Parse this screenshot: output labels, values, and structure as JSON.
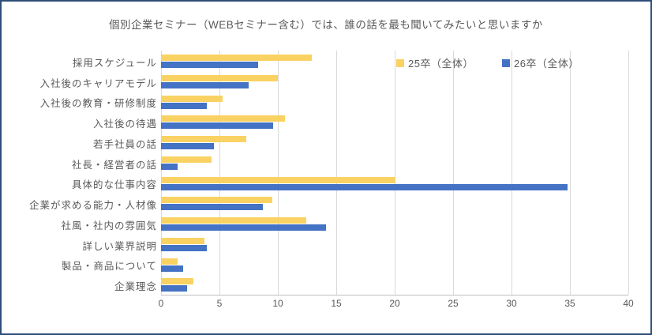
{
  "chart_data": {
    "type": "bar",
    "orientation": "horizontal",
    "title": "個別企業セミナー（WEBセミナー含む）では、誰の話を最も聞いてみたいと思いますか",
    "categories": [
      "採用スケジュール",
      "入社後のキャリアモデル",
      "入社後の教育・研修制度",
      "入社後の待遇",
      "若手社員の話",
      "社長・経営者の話",
      "具体的な仕事内容",
      "企業が求める能力・人材像",
      "社風・社内の雰囲気",
      "詳しい業界説明",
      "製品・商品について",
      "企業理念"
    ],
    "series": [
      {
        "name": "25卒（全体）",
        "color": "#FAD263",
        "values": [
          12.9,
          10.0,
          5.3,
          10.6,
          7.3,
          4.3,
          20.1,
          9.5,
          12.4,
          3.7,
          1.4,
          2.8
        ]
      },
      {
        "name": "26卒（全体）",
        "color": "#4472C4",
        "values": [
          8.3,
          7.5,
          3.9,
          9.6,
          4.5,
          1.4,
          34.8,
          8.7,
          14.1,
          3.9,
          1.9,
          2.2
        ]
      }
    ],
    "xlabel": "",
    "ylabel": "",
    "xlim": [
      0,
      40
    ],
    "xticks": [
      0,
      5,
      10,
      15,
      20,
      25,
      30,
      35,
      40
    ],
    "grid": true,
    "legend_position": "top-right"
  },
  "colors": {
    "frame_border": "#2F4E79",
    "gridline": "#D9D9D9",
    "axis_line": "#BFBFBF",
    "title_text": "#595959",
    "axis_text": "#595959"
  }
}
